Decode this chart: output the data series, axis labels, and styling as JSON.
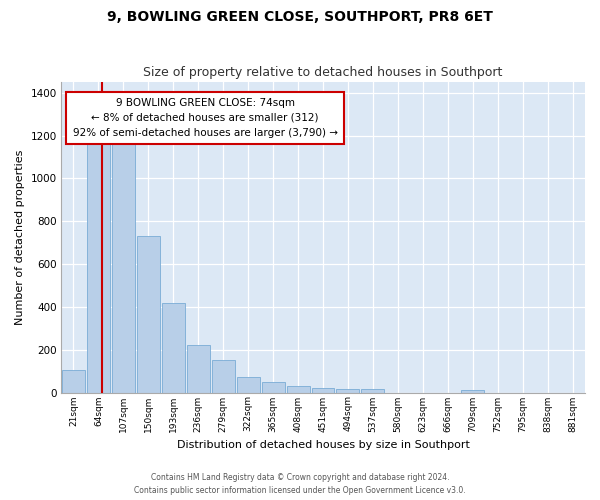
{
  "title": "9, BOWLING GREEN CLOSE, SOUTHPORT, PR8 6ET",
  "subtitle": "Size of property relative to detached houses in Southport",
  "xlabel": "Distribution of detached houses by size in Southport",
  "ylabel": "Number of detached properties",
  "categories": [
    "21sqm",
    "64sqm",
    "107sqm",
    "150sqm",
    "193sqm",
    "236sqm",
    "279sqm",
    "322sqm",
    "365sqm",
    "408sqm",
    "451sqm",
    "494sqm",
    "537sqm",
    "580sqm",
    "623sqm",
    "666sqm",
    "709sqm",
    "752sqm",
    "795sqm",
    "838sqm",
    "881sqm"
  ],
  "values": [
    107,
    1163,
    1163,
    730,
    420,
    220,
    150,
    73,
    50,
    30,
    20,
    15,
    15,
    0,
    0,
    0,
    10,
    0,
    0,
    0,
    0
  ],
  "bar_color": "#b8cfe8",
  "bar_edge_color": "#7aacd6",
  "highlight_color": "#cc0000",
  "red_line_x": 1.15,
  "annotation_text": "9 BOWLING GREEN CLOSE: 74sqm\n← 8% of detached houses are smaller (312)\n92% of semi-detached houses are larger (3,790) →",
  "annotation_box_color": "#ffffff",
  "annotation_box_edge_color": "#cc0000",
  "ylim": [
    0,
    1450
  ],
  "yticks": [
    0,
    200,
    400,
    600,
    800,
    1000,
    1200,
    1400
  ],
  "footer_line1": "Contains HM Land Registry data © Crown copyright and database right 2024.",
  "footer_line2": "Contains public sector information licensed under the Open Government Licence v3.0.",
  "background_color": "#ffffff",
  "plot_bg_color": "#dce8f5",
  "grid_color": "#ffffff",
  "title_fontsize": 10,
  "subtitle_fontsize": 9
}
